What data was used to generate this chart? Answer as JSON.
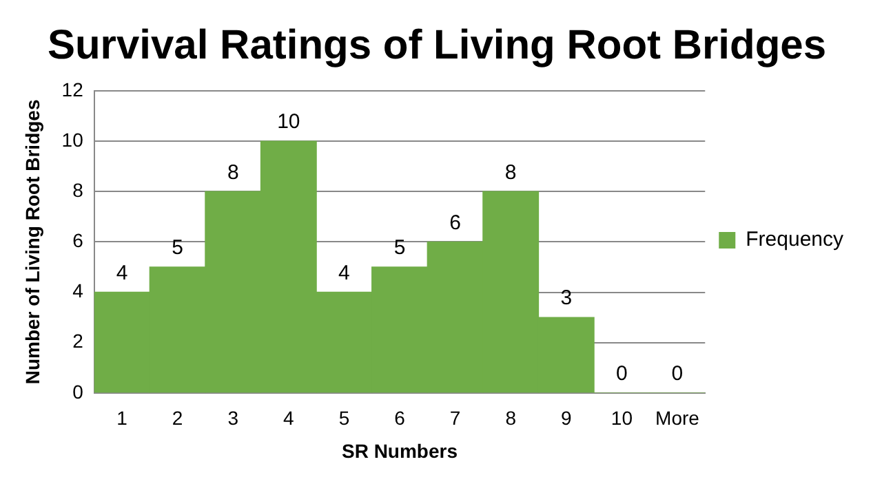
{
  "chart_data": {
    "type": "bar",
    "title": "Survival Ratings of Living Root Bridges",
    "xlabel": "SR Numbers",
    "ylabel": "Number of Living Root Bridges",
    "categories": [
      "1",
      "2",
      "3",
      "4",
      "5",
      "6",
      "7",
      "8",
      "9",
      "10",
      "More"
    ],
    "series": [
      {
        "name": "Frequency",
        "color": "#70ad47",
        "values": [
          4,
          5,
          8,
          10,
          4,
          5,
          6,
          8,
          3,
          0,
          0
        ]
      }
    ],
    "ylim": [
      0,
      12
    ],
    "yticks": [
      0,
      2,
      4,
      6,
      8,
      10,
      12
    ],
    "grid": "y",
    "legend": "right",
    "data_labels": true
  }
}
